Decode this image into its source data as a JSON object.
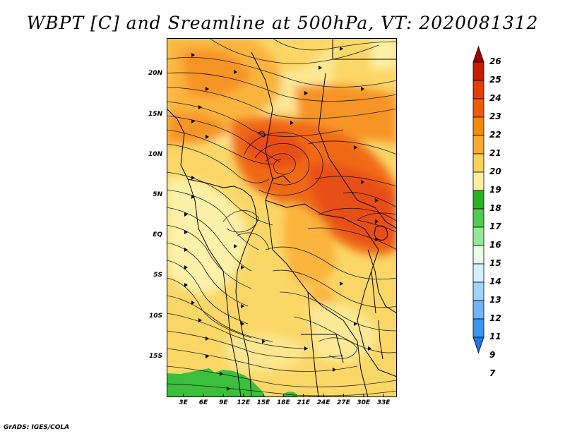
{
  "title": "WBPT [C] and Sreamline at 500hPa, VT: 2020081312",
  "credit": "GrADS: IGES/COLA",
  "map": {
    "lat_ticks": [
      {
        "label": "20N",
        "value": 20
      },
      {
        "label": "15N",
        "value": 15
      },
      {
        "label": "10N",
        "value": 10
      },
      {
        "label": "5N",
        "value": 5
      },
      {
        "label": "EQ",
        "value": 0
      },
      {
        "label": "5S",
        "value": -5
      },
      {
        "label": "10S",
        "value": -10
      },
      {
        "label": "15S",
        "value": -15
      }
    ],
    "lon_ticks": [
      {
        "label": "3E",
        "value": 3
      },
      {
        "label": "6E",
        "value": 6
      },
      {
        "label": "9E",
        "value": 9
      },
      {
        "label": "12E",
        "value": 12
      },
      {
        "label": "15E",
        "value": 15
      },
      {
        "label": "18E",
        "value": 18
      },
      {
        "label": "21E",
        "value": 21
      },
      {
        "label": "24E",
        "value": 24
      },
      {
        "label": "27E",
        "value": 27
      },
      {
        "label": "30E",
        "value": 30
      },
      {
        "label": "33E",
        "value": 33
      }
    ],
    "lon_range": [
      0.5,
      35
    ],
    "lat_range": [
      -20,
      24.5
    ]
  },
  "colorbar": {
    "levels": [
      "26",
      "25",
      "24",
      "23",
      "22",
      "21",
      "20",
      "19",
      "18",
      "17",
      "16",
      "15",
      "14",
      "13",
      "12",
      "11",
      "9",
      "7"
    ],
    "colors": [
      "#a50000",
      "#c81e00",
      "#e63c00",
      "#f05a00",
      "#f58c00",
      "#faaa2d",
      "#fad25a",
      "#fff0a0",
      "#28b428",
      "#50cc50",
      "#96e696",
      "#e6ffe6",
      "#d2f0ff",
      "#a0d2ff",
      "#6eb4ff",
      "#3c96f0",
      "#1e78dc"
    ]
  },
  "palette": {
    "light_yellow": "#fdf0a8",
    "yellow": "#fbd768",
    "orange_light": "#fbb43c",
    "orange": "#f79428",
    "orange_dark": "#f06a18",
    "red_orange": "#e85014",
    "green": "#3cc03c",
    "line": "#000000"
  }
}
